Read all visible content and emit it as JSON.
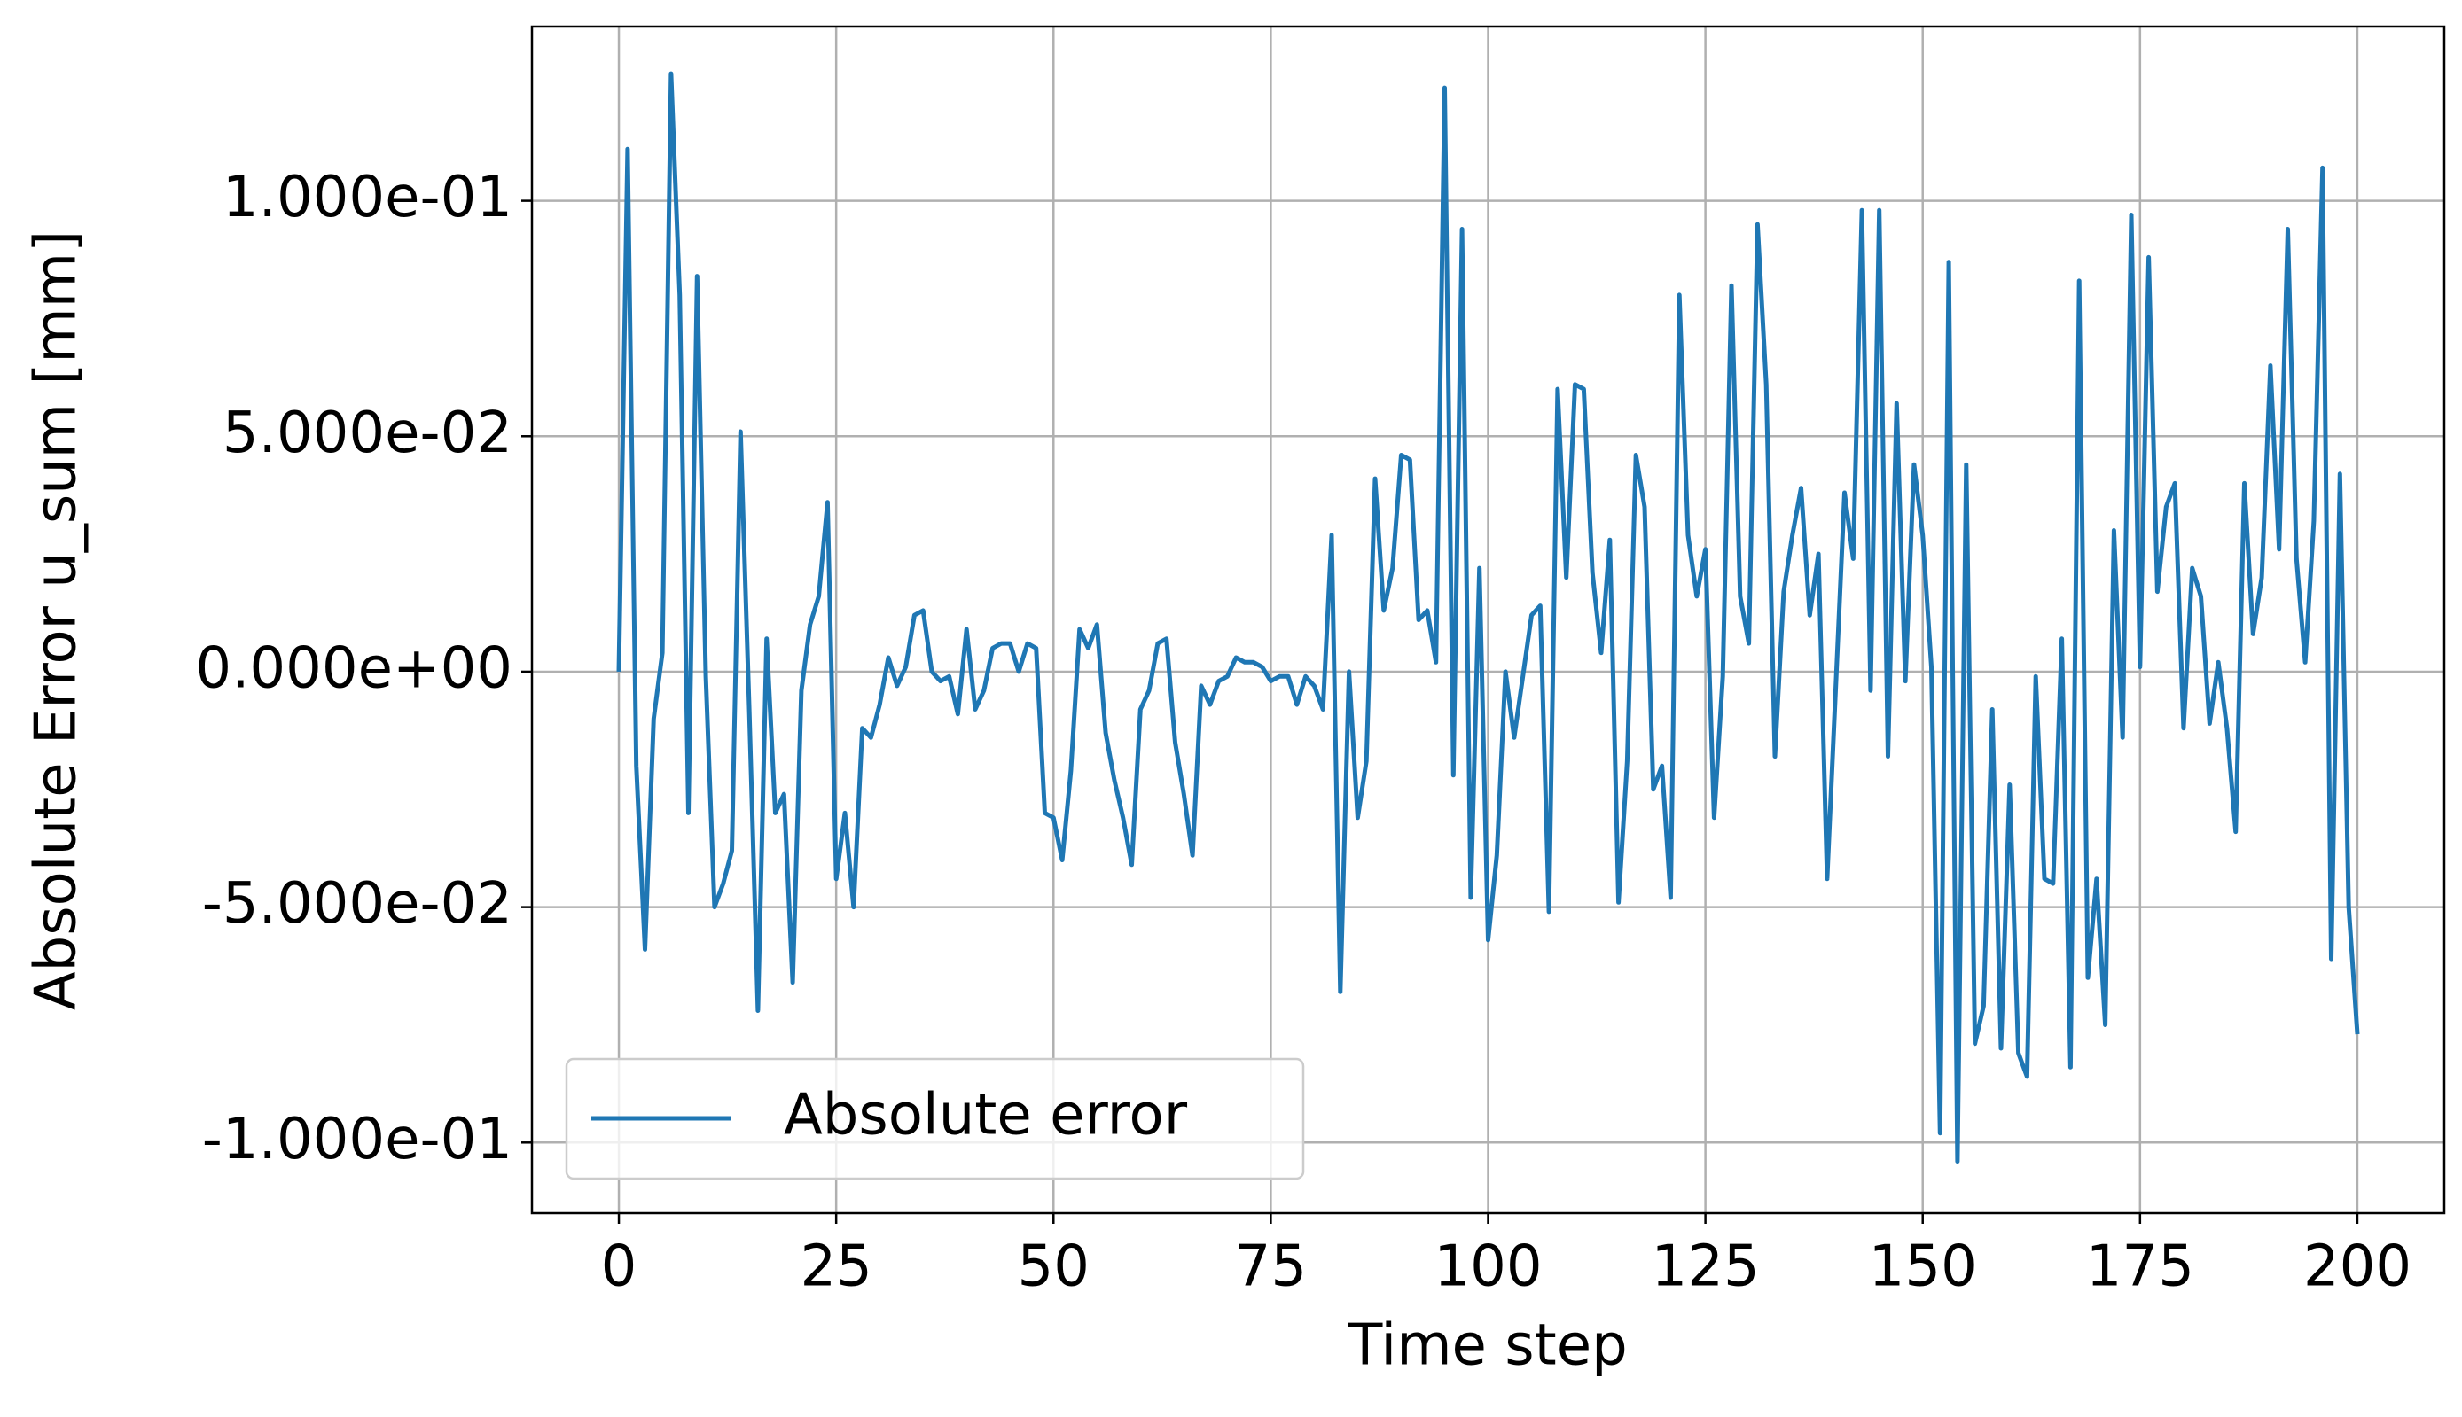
{
  "chart_data": {
    "type": "line",
    "xlabel": "Time step",
    "ylabel": "Absolute Error u_sum [mm]",
    "x": [
      0,
      1,
      2,
      3,
      4,
      5,
      6,
      7,
      8,
      9,
      10,
      11,
      12,
      13,
      14,
      15,
      16,
      17,
      18,
      19,
      20,
      21,
      22,
      23,
      24,
      25,
      26,
      27,
      28,
      29,
      30,
      31,
      32,
      33,
      34,
      35,
      36,
      37,
      38,
      39,
      40,
      41,
      42,
      43,
      44,
      45,
      46,
      47,
      48,
      49,
      50,
      51,
      52,
      53,
      54,
      55,
      56,
      57,
      58,
      59,
      60,
      61,
      62,
      63,
      64,
      65,
      66,
      67,
      68,
      69,
      70,
      71,
      72,
      73,
      74,
      75,
      76,
      77,
      78,
      79,
      80,
      81,
      82,
      83,
      84,
      85,
      86,
      87,
      88,
      89,
      90,
      91,
      92,
      93,
      94,
      95,
      96,
      97,
      98,
      99,
      100,
      101,
      102,
      103,
      104,
      105,
      106,
      107,
      108,
      109,
      110,
      111,
      112,
      113,
      114,
      115,
      116,
      117,
      118,
      119,
      120,
      121,
      122,
      123,
      124,
      125,
      126,
      127,
      128,
      129,
      130,
      131,
      132,
      133,
      134,
      135,
      136,
      137,
      138,
      139,
      140,
      141,
      142,
      143,
      144,
      145,
      146,
      147,
      148,
      149,
      150,
      151,
      152,
      153,
      154,
      155,
      156,
      157,
      158,
      159,
      160,
      161,
      162,
      163,
      164,
      165,
      166,
      167,
      168,
      169,
      170,
      171,
      172,
      173,
      174,
      175,
      176,
      177,
      178,
      179,
      180,
      181,
      182,
      183,
      184,
      185,
      186,
      187,
      188,
      189,
      190,
      191,
      192,
      193,
      194,
      195,
      196,
      197,
      198,
      199,
      200
    ],
    "series": [
      {
        "name": "Absolute error",
        "color": "#1f77b4",
        "values": [
          0,
          0.111,
          -0.02,
          -0.059,
          -0.01,
          0.004,
          0.127,
          0.08,
          -0.03,
          0.084,
          -0.001,
          -0.05,
          -0.045,
          -0.038,
          0.051,
          -0.008,
          -0.072,
          0.007,
          -0.03,
          -0.026,
          -0.066,
          -0.004,
          0.01,
          0.016,
          0.036,
          -0.044,
          -0.03,
          -0.05,
          -0.012,
          -0.014,
          -0.007,
          0.003,
          -0.003,
          0.001,
          0.012,
          0.013,
          0,
          -0.002,
          -0.001,
          -0.009,
          0.009,
          -0.008,
          -0.004,
          0.005,
          0.006,
          0.006,
          0,
          0.006,
          0.005,
          -0.03,
          -0.031,
          -0.04,
          -0.021,
          0.009,
          0.005,
          0.01,
          -0.013,
          -0.023,
          -0.031,
          -0.041,
          -0.008,
          -0.004,
          0.006,
          0.007,
          -0.015,
          -0.026,
          -0.039,
          -0.003,
          -0.007,
          -0.002,
          -0.001,
          0.003,
          0.002,
          0.002,
          0.001,
          -0.002,
          -0.001,
          -0.001,
          -0.007,
          -0.001,
          -0.003,
          -0.008,
          0.029,
          -0.068,
          0,
          -0.031,
          -0.019,
          0.041,
          0.013,
          0.022,
          0.046,
          0.045,
          0.011,
          0.013,
          0.002,
          0.124,
          -0.022,
          0.094,
          -0.048,
          0.022,
          -0.057,
          -0.039,
          0,
          -0.014,
          -0.001,
          0.012,
          0.014,
          -0.051,
          0.06,
          0.02,
          0.061,
          0.06,
          0.021,
          0.004,
          0.028,
          -0.049,
          -0.019,
          0.046,
          0.035,
          -0.025,
          -0.02,
          -0.048,
          0.08,
          0.029,
          0.016,
          0.026,
          -0.031,
          -0.001,
          0.082,
          0.016,
          0.006,
          0.095,
          0.061,
          -0.018,
          0.017,
          0.029,
          0.039,
          0.012,
          0.025,
          -0.044,
          -0.003,
          0.038,
          0.024,
          0.098,
          -0.004,
          0.098,
          -0.018,
          0.057,
          -0.002,
          0.044,
          0.029,
          0.001,
          -0.098,
          0.087,
          -0.104,
          0.044,
          -0.079,
          -0.071,
          -0.008,
          -0.08,
          -0.024,
          -0.081,
          -0.086,
          -0.001,
          -0.044,
          -0.045,
          0.007,
          -0.084,
          0.083,
          -0.065,
          -0.044,
          -0.075,
          0.03,
          -0.014,
          0.097,
          0.001,
          0.088,
          0.017,
          0.035,
          0.04,
          -0.012,
          0.022,
          0.016,
          -0.011,
          0.002,
          -0.012,
          -0.034,
          0.04,
          0.008,
          0.02,
          0.065,
          0.026,
          0.094,
          0.024,
          0.002,
          0.032,
          0.107,
          -0.061,
          0.042,
          -0.05,
          -0.077
        ]
      }
    ],
    "xlim": [
      -10,
      210
    ],
    "ylim": [
      -0.115,
      0.137
    ],
    "xticks": [
      0,
      25,
      50,
      75,
      100,
      125,
      150,
      175,
      200
    ],
    "yticks": [
      {
        "value": -0.1,
        "label": "-1.000e-01"
      },
      {
        "value": -0.05,
        "label": "-5.000e-02"
      },
      {
        "value": 0,
        "label": "0.000e+00"
      },
      {
        "value": 0.05,
        "label": "5.000e-02"
      },
      {
        "value": 0.1,
        "label": "1.000e-01"
      }
    ],
    "grid": true,
    "legend": "lower left"
  }
}
